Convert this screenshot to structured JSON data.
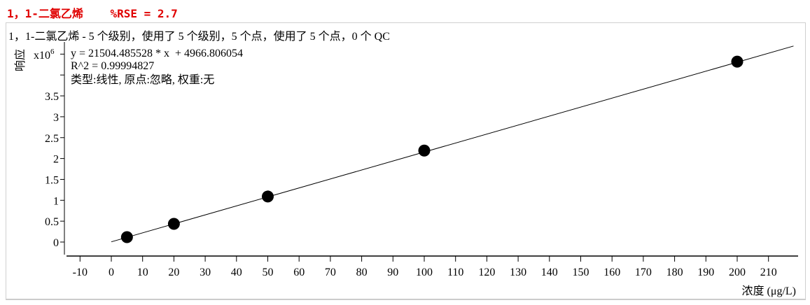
{
  "header": {
    "title": "1，1-二氯乙烯",
    "rse": "%RSE = 2.7"
  },
  "chart_data": {
    "type": "scatter",
    "title": "1，1-二氯乙烯 - 5 个级别，使用了 5 个级别，5 个点，使用了 5 个点，0 个 QC",
    "xlabel": "浓度 (μg/L)",
    "ylabel": "响应",
    "y_multiplier": "x10",
    "y_multiplier_exp": "6",
    "equation": "y = 21504.485528 * x  + 4966.806054",
    "r2": "R^2 = 0.99994827",
    "fit_info": "类型:线性, 原点:忽略, 权重:无",
    "xlim": [
      -14,
      219
    ],
    "ylim": [
      -0.3,
      4.8
    ],
    "x_ticks": [
      -10,
      0,
      10,
      20,
      30,
      40,
      50,
      60,
      70,
      80,
      90,
      100,
      110,
      120,
      130,
      140,
      150,
      160,
      170,
      180,
      190,
      200,
      210
    ],
    "y_ticks": [
      0,
      0.5,
      1,
      1.5,
      2,
      2.5,
      3,
      3.5,
      4,
      4.5
    ],
    "y_tick_labels": [
      "0",
      "0.5",
      "1",
      "1.5",
      "2",
      "2.5",
      "3",
      "3.5",
      "",
      ""
    ],
    "points": [
      {
        "x": 5,
        "y": 0.117
      },
      {
        "x": 20,
        "y": 0.435
      },
      {
        "x": 50,
        "y": 1.09
      },
      {
        "x": 100,
        "y": 2.19
      },
      {
        "x": 200,
        "y": 4.32
      }
    ],
    "fit": {
      "slope": 21504.485528,
      "intercept": 4966.806054,
      "x_range": [
        0,
        218
      ]
    },
    "grid": false
  }
}
